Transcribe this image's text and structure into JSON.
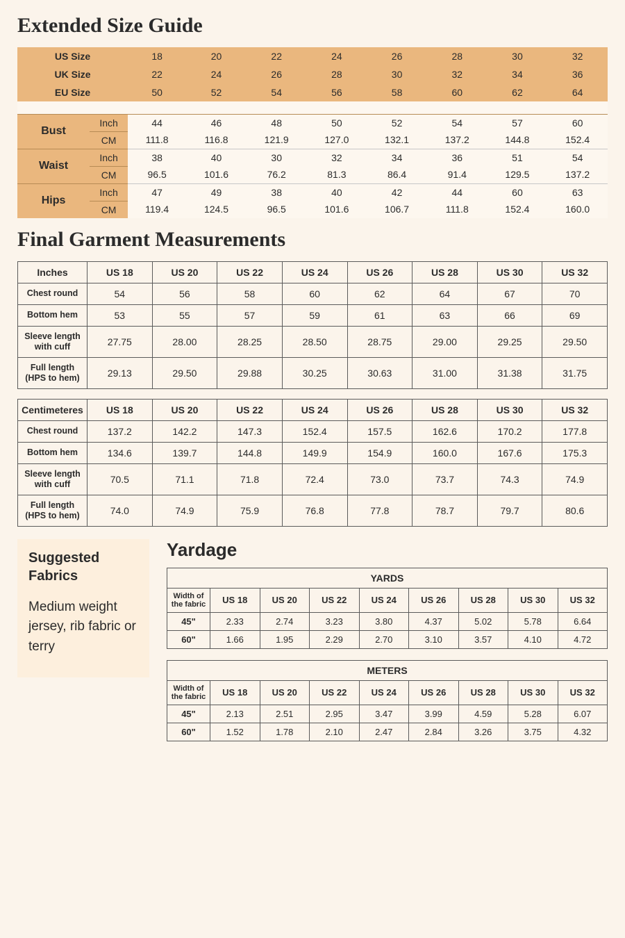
{
  "titles": {
    "extended": "Extended Size Guide",
    "garment": "Final Garment Measurements",
    "fabrics": "Suggested Fabrics",
    "yardage": "Yardage"
  },
  "colors": {
    "page_bg": "#fbf4eb",
    "orange": "#eab77e",
    "cream": "#fdf7ef",
    "fabrics_bg": "#fdefdd",
    "border_dark": "#5a5a5a",
    "border_orange": "#b68b55"
  },
  "ext": {
    "size_labels": [
      "US Size",
      "UK Size",
      "EU Size"
    ],
    "size_rows": [
      [
        "18",
        "20",
        "22",
        "24",
        "26",
        "28",
        "30",
        "32"
      ],
      [
        "22",
        "24",
        "26",
        "28",
        "30",
        "32",
        "34",
        "36"
      ],
      [
        "50",
        "52",
        "54",
        "56",
        "58",
        "60",
        "62",
        "64"
      ]
    ],
    "body_parts": [
      "Bust",
      "Waist",
      "Hips"
    ],
    "unit_labels": [
      "Inch",
      "CM"
    ],
    "body_rows": {
      "Bust": {
        "Inch": [
          "44",
          "46",
          "48",
          "50",
          "52",
          "54",
          "57",
          "60"
        ],
        "CM": [
          "111.8",
          "116.8",
          "121.9",
          "127.0",
          "132.1",
          "137.2",
          "144.8",
          "152.4"
        ]
      },
      "Waist": {
        "Inch": [
          "38",
          "40",
          "30",
          "32",
          "34",
          "36",
          "51",
          "54"
        ],
        "CM": [
          "96.5",
          "101.6",
          "76.2",
          "81.3",
          "86.4",
          "91.4",
          "129.5",
          "137.2"
        ]
      },
      "Hips": {
        "Inch": [
          "47",
          "49",
          "38",
          "40",
          "42",
          "44",
          "60",
          "63"
        ],
        "CM": [
          "119.4",
          "124.5",
          "96.5",
          "101.6",
          "106.7",
          "111.8",
          "152.4",
          "160.0"
        ]
      }
    }
  },
  "garment": {
    "size_headers": [
      "US 18",
      "US 20",
      "US 22",
      "US 24",
      "US 26",
      "US 28",
      "US 30",
      "US 32"
    ],
    "unit_titles": [
      "Inches",
      "Centimeteres"
    ],
    "row_labels": [
      "Chest round",
      "Bottom hem",
      "Sleeve length with cuff",
      "Full length (HPS to hem)"
    ],
    "tables": {
      "Inches": [
        [
          "54",
          "56",
          "58",
          "60",
          "62",
          "64",
          "67",
          "70"
        ],
        [
          "53",
          "55",
          "57",
          "59",
          "61",
          "63",
          "66",
          "69"
        ],
        [
          "27.75",
          "28.00",
          "28.25",
          "28.50",
          "28.75",
          "29.00",
          "29.25",
          "29.50"
        ],
        [
          "29.13",
          "29.50",
          "29.88",
          "30.25",
          "30.63",
          "31.00",
          "31.38",
          "31.75"
        ]
      ],
      "Centimeteres": [
        [
          "137.2",
          "142.2",
          "147.3",
          "152.4",
          "157.5",
          "162.6",
          "170.2",
          "177.8"
        ],
        [
          "134.6",
          "139.7",
          "144.8",
          "149.9",
          "154.9",
          "160.0",
          "167.6",
          "175.3"
        ],
        [
          "70.5",
          "71.1",
          "71.8",
          "72.4",
          "73.0",
          "73.7",
          "74.3",
          "74.9"
        ],
        [
          "74.0",
          "74.9",
          "75.9",
          "76.8",
          "77.8",
          "78.7",
          "79.7",
          "80.6"
        ]
      ]
    }
  },
  "fabrics_text": "Medium weight jersey, rib fabric or terry",
  "yardage": {
    "width_label": "Width of the fabric",
    "width_values": [
      "45\"",
      "60\""
    ],
    "size_headers": [
      "US 18",
      "US 20",
      "US 22",
      "US 24",
      "US 26",
      "US 28",
      "US 30",
      "US 32"
    ],
    "unit_titles": [
      "YARDS",
      "METERS"
    ],
    "tables": {
      "YARDS": [
        [
          "2.33",
          "2.74",
          "3.23",
          "3.80",
          "4.37",
          "5.02",
          "5.78",
          "6.64"
        ],
        [
          "1.66",
          "1.95",
          "2.29",
          "2.70",
          "3.10",
          "3.57",
          "4.10",
          "4.72"
        ]
      ],
      "METERS": [
        [
          "2.13",
          "2.51",
          "2.95",
          "3.47",
          "3.99",
          "4.59",
          "5.28",
          "6.07"
        ],
        [
          "1.52",
          "1.78",
          "2.10",
          "2.47",
          "2.84",
          "3.26",
          "3.75",
          "4.32"
        ]
      ]
    }
  }
}
